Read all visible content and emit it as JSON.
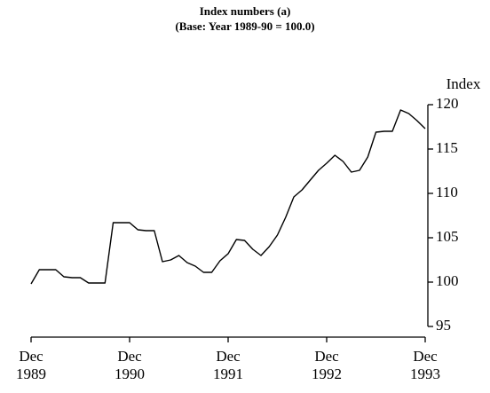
{
  "chart_data": {
    "type": "line",
    "title": "Index numbers (a)",
    "subtitle": "(Base: Year 1989-90 = 100.0)",
    "y_label": "Index",
    "categories": [
      "Dec\n1989",
      null,
      null,
      null,
      null,
      null,
      null,
      null,
      null,
      null,
      null,
      null,
      "Dec\n1990",
      null,
      null,
      null,
      null,
      null,
      null,
      null,
      null,
      null,
      null,
      null,
      "Dec\n1991",
      null,
      null,
      null,
      null,
      null,
      null,
      null,
      null,
      null,
      null,
      null,
      "Dec\n1992",
      null,
      null,
      null,
      null,
      null,
      null,
      null,
      null,
      null,
      null,
      null,
      "Dec\n1993"
    ],
    "values": [
      99.8,
      101.4,
      101.4,
      101.4,
      100.6,
      100.5,
      100.5,
      99.9,
      99.9,
      99.9,
      106.7,
      106.7,
      106.7,
      105.9,
      105.8,
      105.8,
      102.3,
      102.5,
      103.0,
      102.2,
      101.8,
      101.1,
      101.1,
      102.4,
      103.2,
      104.8,
      104.7,
      103.7,
      103.0,
      104.0,
      105.3,
      107.3,
      109.6,
      110.4,
      111.5,
      112.6,
      113.4,
      114.3,
      113.6,
      112.4,
      112.6,
      114.1,
      116.9,
      117.0,
      117.0,
      119.4,
      119.0,
      118.2,
      117.3
    ],
    "color": "#000000",
    "ylim": [
      95,
      120
    ],
    "yticks": [
      95,
      100,
      105,
      110,
      115,
      120
    ],
    "y_axis_side": "right",
    "grid": false
  }
}
